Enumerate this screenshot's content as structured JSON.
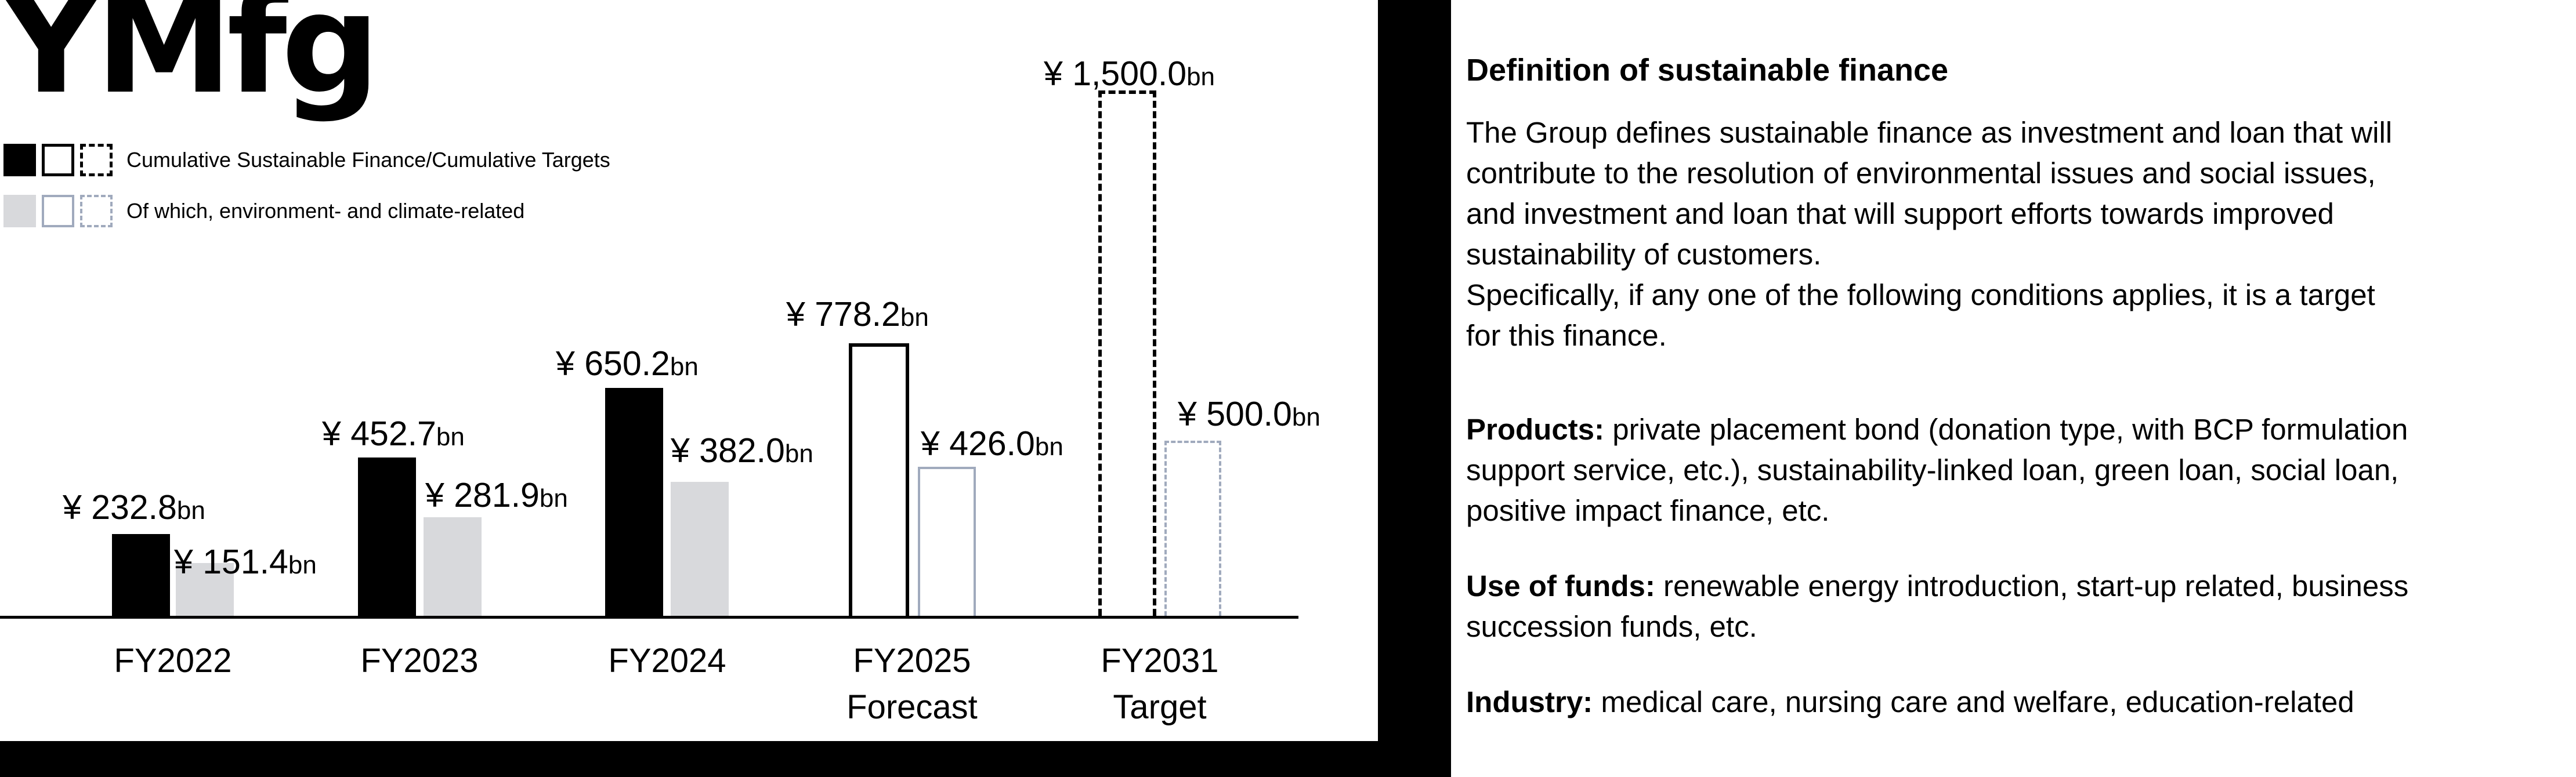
{
  "logo": "YMfg",
  "legend": {
    "main": "Cumulative Sustainable Finance/Cumulative Targets",
    "env": "Of which, environment- and climate-related"
  },
  "chart_data": {
    "type": "bar",
    "title": "Cumulative Sustainable Finance / Cumulative Targets (YMfg)",
    "categories": [
      "FY2022",
      "FY2023",
      "FY2024",
      "FY2025 Forecast",
      "FY2031 Target"
    ],
    "categories_lines": [
      [
        "FY2022"
      ],
      [
        "FY2023"
      ],
      [
        "FY2024"
      ],
      [
        "FY2025",
        "Forecast"
      ],
      [
        "FY2031",
        "Target"
      ]
    ],
    "series": [
      {
        "name": "Cumulative Sustainable Finance/Cumulative Targets",
        "values": [
          232.8,
          452.7,
          650.2,
          778.2,
          1500.0
        ]
      },
      {
        "name": "Of which, environment- and climate-related",
        "values": [
          151.4,
          281.9,
          382.0,
          426.0,
          500.0
        ]
      }
    ],
    "value_labels": {
      "main": [
        "¥ 232.8",
        "¥ 452.7",
        "¥ 650.2",
        "¥ 778.2",
        "¥ 1,500.0"
      ],
      "env": [
        "¥ 151.4",
        "¥ 281.9",
        "¥ 382.0",
        "¥ 426.0",
        "¥ 500.0"
      ]
    },
    "unit_prefix": "¥",
    "unit_suffix": "bn",
    "bar_styles": [
      "filled",
      "filled",
      "filled",
      "outlined",
      "dashed"
    ],
    "xlabel": "",
    "ylabel": "",
    "ylim": [
      0,
      1550
    ],
    "grid": false,
    "legend_position": "top-left"
  },
  "colors": {
    "bar_main": "#000000",
    "bar_env": "#d8d9dc",
    "stroke_env": "#a0aabd",
    "frame": "#000000",
    "panel_bg": "#ffffff"
  },
  "info": {
    "title": "Definition of sustainable finance",
    "paragraphs": [
      {
        "lead": "",
        "text": "The Group defines sustainable finance as investment and loan that will\ncontribute to the resolution of environmental issues and social issues,\nand investment and loan that will support efforts towards improved\nsustainability of customers.\nSpecifically, if any one of the following conditions applies, it is a target\nfor this finance."
      },
      {
        "lead": "Products:",
        "text": " private placement bond (donation type, with BCP formulation\nsupport service, etc.), sustainability-linked loan, green loan, social loan,\npositive impact finance, etc."
      },
      {
        "lead": "Use of funds:",
        "text": " renewable energy introduction, start-up related, business\nsuccession funds, etc."
      },
      {
        "lead": "Industry:",
        "text": " medical care, nursing care and welfare, education-related"
      }
    ]
  }
}
